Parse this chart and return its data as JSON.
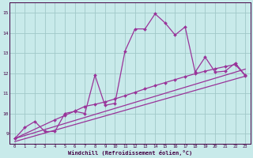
{
  "bg_color": "#c8eaea",
  "plot_bg_color": "#c8eaea",
  "line_color": "#993399",
  "grid_color": "#a0c8c8",
  "xlabel": "Windchill (Refroidissement éolien,°C)",
  "ylabel_values": [
    9,
    10,
    11,
    12,
    13,
    14,
    15
  ],
  "xlabel_values": [
    0,
    1,
    2,
    3,
    4,
    5,
    6,
    7,
    8,
    9,
    10,
    11,
    12,
    13,
    14,
    15,
    16,
    17,
    18,
    19,
    20,
    21,
    22,
    23
  ],
  "ylim": [
    8.5,
    15.5
  ],
  "xlim": [
    -0.5,
    23.5
  ],
  "curve1_x": [
    0,
    1,
    2,
    3,
    4,
    5,
    6,
    7,
    8,
    9,
    10,
    11,
    12,
    13,
    14,
    15,
    16,
    17,
    18,
    19,
    20,
    21,
    22,
    23
  ],
  "curve1_y": [
    8.75,
    9.3,
    9.6,
    9.1,
    9.1,
    10.0,
    10.1,
    10.0,
    11.9,
    10.4,
    10.5,
    13.1,
    14.2,
    14.2,
    14.95,
    14.5,
    13.9,
    14.3,
    12.05,
    12.8,
    12.05,
    12.1,
    12.5,
    11.9
  ],
  "line1_x": [
    0,
    23
  ],
  "line1_y": [
    8.75,
    12.2
  ],
  "line2_x": [
    0,
    23
  ],
  "line2_y": [
    8.6,
    11.85
  ],
  "line3_x": [
    0,
    4,
    5,
    6,
    7,
    8,
    9,
    10,
    11,
    12,
    13,
    14,
    15,
    16,
    17,
    18,
    19,
    20,
    21,
    22,
    23
  ],
  "line3_y": [
    8.75,
    9.68,
    9.9,
    10.12,
    10.35,
    10.45,
    10.57,
    10.72,
    10.88,
    11.05,
    11.22,
    11.38,
    11.53,
    11.68,
    11.83,
    11.97,
    12.1,
    12.22,
    12.33,
    12.43,
    11.88
  ]
}
